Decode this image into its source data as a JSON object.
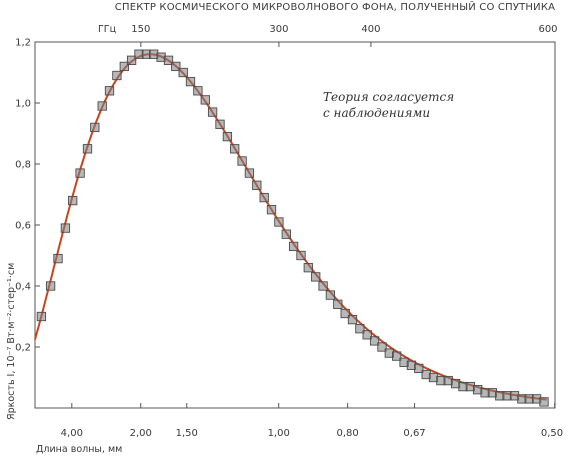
{
  "chart_data": {
    "type": "scatter",
    "title": "СПЕКТР КОСМИЧЕСКОГО МИКРОВОЛНОВОГО ФОНА, ПОЛУЧЕННЫЙ СО СПУТНИКА",
    "top_axis_unit": "ГГц",
    "top_ticks": [
      {
        "value": 150,
        "label": "150"
      },
      {
        "value": 300,
        "label": "300"
      },
      {
        "value": 400,
        "label": "400"
      },
      {
        "value": 600,
        "label": "600"
      }
    ],
    "xlabel": "Длина волны, мм",
    "x_ticks": [
      {
        "value": 75.0,
        "label": "4,00"
      },
      {
        "value": 149.9,
        "label": "2,00"
      },
      {
        "value": 199.9,
        "label": "1,50"
      },
      {
        "value": 299.8,
        "label": "1,00"
      },
      {
        "value": 374.7,
        "label": "0,80"
      },
      {
        "value": 447.4,
        "label": "0,67"
      },
      {
        "value": 599.6,
        "label": "0,50"
      }
    ],
    "xlim": [
      35,
      600
    ],
    "ylabel": "Яркость I, 10⁻⁷ Вт·м⁻²·стер⁻¹·см",
    "ylim": [
      0,
      1.2
    ],
    "y_ticks": [
      {
        "value": 0.2,
        "label": "0,2"
      },
      {
        "value": 0.4,
        "label": "0,4"
      },
      {
        "value": 0.6,
        "label": "0,6"
      },
      {
        "value": 0.8,
        "label": "0,8"
      },
      {
        "value": 1.0,
        "label": "1,0"
      },
      {
        "value": 1.2,
        "label": "1,2"
      }
    ],
    "annotation": [
      "Теория согласуется",
      "с наблюдениями"
    ],
    "series": [
      {
        "kind": "measured",
        "marker": "square",
        "x": [
          42,
          52,
          60,
          68,
          76,
          84,
          92,
          100,
          108,
          116,
          124,
          132,
          140,
          148,
          156,
          164,
          172,
          180,
          188,
          196,
          204,
          212,
          220,
          228,
          236,
          244,
          252,
          260,
          268,
          276,
          284,
          292,
          300,
          308,
          316,
          324,
          332,
          340,
          348,
          356,
          364,
          372,
          380,
          388,
          396,
          404,
          412,
          420,
          428,
          436,
          444,
          452,
          460,
          468,
          476,
          484,
          492,
          500,
          508,
          516,
          524,
          532,
          540,
          548,
          556,
          564,
          572,
          580,
          588
        ],
        "y": [
          0.3,
          0.4,
          0.49,
          0.59,
          0.68,
          0.77,
          0.85,
          0.92,
          0.99,
          1.04,
          1.09,
          1.12,
          1.14,
          1.16,
          1.16,
          1.16,
          1.15,
          1.14,
          1.12,
          1.1,
          1.07,
          1.04,
          1.01,
          0.97,
          0.93,
          0.89,
          0.85,
          0.81,
          0.77,
          0.73,
          0.69,
          0.65,
          0.61,
          0.57,
          0.53,
          0.5,
          0.46,
          0.43,
          0.4,
          0.37,
          0.34,
          0.31,
          0.29,
          0.26,
          0.24,
          0.22,
          0.2,
          0.18,
          0.17,
          0.15,
          0.14,
          0.13,
          0.11,
          0.1,
          0.09,
          0.09,
          0.08,
          0.07,
          0.07,
          0.06,
          0.05,
          0.05,
          0.04,
          0.04,
          0.04,
          0.03,
          0.03,
          0.03,
          0.02
        ],
        "color": "#7d7d7d"
      },
      {
        "kind": "theory",
        "color": "#c8451f"
      }
    ],
    "fit": {
      "temperature_ghz_peak": 160,
      "peak_value": 1.16
    }
  }
}
